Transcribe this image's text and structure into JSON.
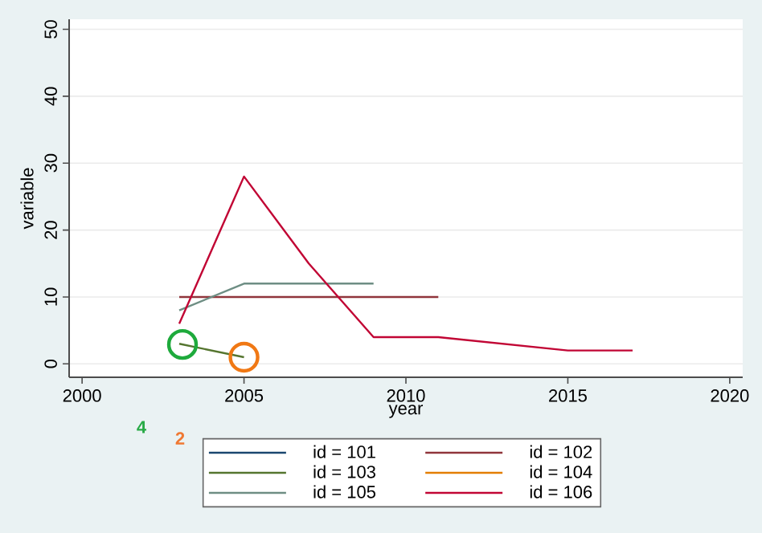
{
  "chart_data": {
    "type": "line",
    "xlabel": "year",
    "ylabel": "variable",
    "xlim": [
      1999.6,
      2020.4
    ],
    "ylim": [
      -2,
      51.5
    ],
    "xticks": [
      2000,
      2005,
      2010,
      2015,
      2020
    ],
    "yticks": [
      0,
      10,
      20,
      30,
      40,
      50
    ],
    "grid": "y",
    "legend": "bottom",
    "line_style": "solid",
    "annotations": [
      "4",
      "2"
    ],
    "series": [
      {
        "name": "id = 101",
        "color": "#1a476f"
      },
      {
        "name": "id = 102",
        "color": "#90353b",
        "x": [
          2003,
          2011
        ],
        "values": [
          10,
          10
        ]
      },
      {
        "name": "id = 103",
        "color": "#55752f",
        "x": [
          2003,
          2005
        ],
        "values": [
          3,
          1
        ]
      },
      {
        "name": "id = 104",
        "color": "#e37e00"
      },
      {
        "name": "id = 105",
        "color": "#6e8e84",
        "x": [
          2003,
          2005,
          2009
        ],
        "values": [
          8,
          12,
          12
        ]
      },
      {
        "name": "id = 106",
        "color": "#c10534",
        "x": [
          2003,
          2005,
          2007,
          2009,
          2011,
          2015,
          2017
        ],
        "values": [
          6,
          28,
          15,
          4,
          4,
          2,
          2
        ]
      }
    ]
  }
}
